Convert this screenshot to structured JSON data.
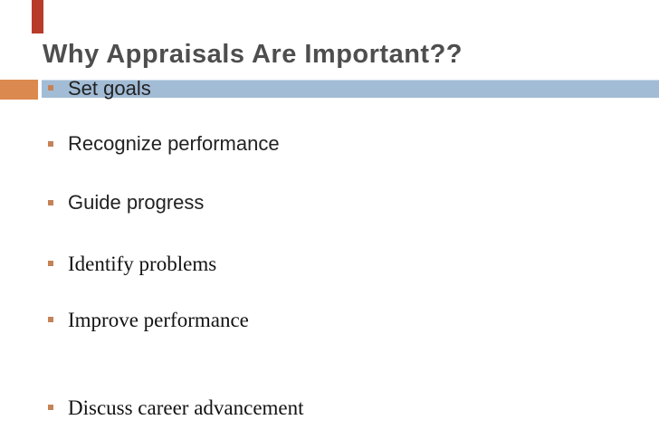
{
  "slide": {
    "title": "Why Appraisals Are Important??",
    "bullets": [
      {
        "label": "Set goals"
      },
      {
        "label": "Recognize performance"
      },
      {
        "label": "Guide progress"
      },
      {
        "label": "Identify problems"
      },
      {
        "label": "Improve performance"
      },
      {
        "label": "Discuss career advancement"
      }
    ],
    "colors": {
      "accent_red": "#b93b2a",
      "accent_orange": "#dc8950",
      "band_blue": "#a2bcd6",
      "bullet_orange": "#c58257",
      "title_gray": "#4e4e4e"
    }
  }
}
